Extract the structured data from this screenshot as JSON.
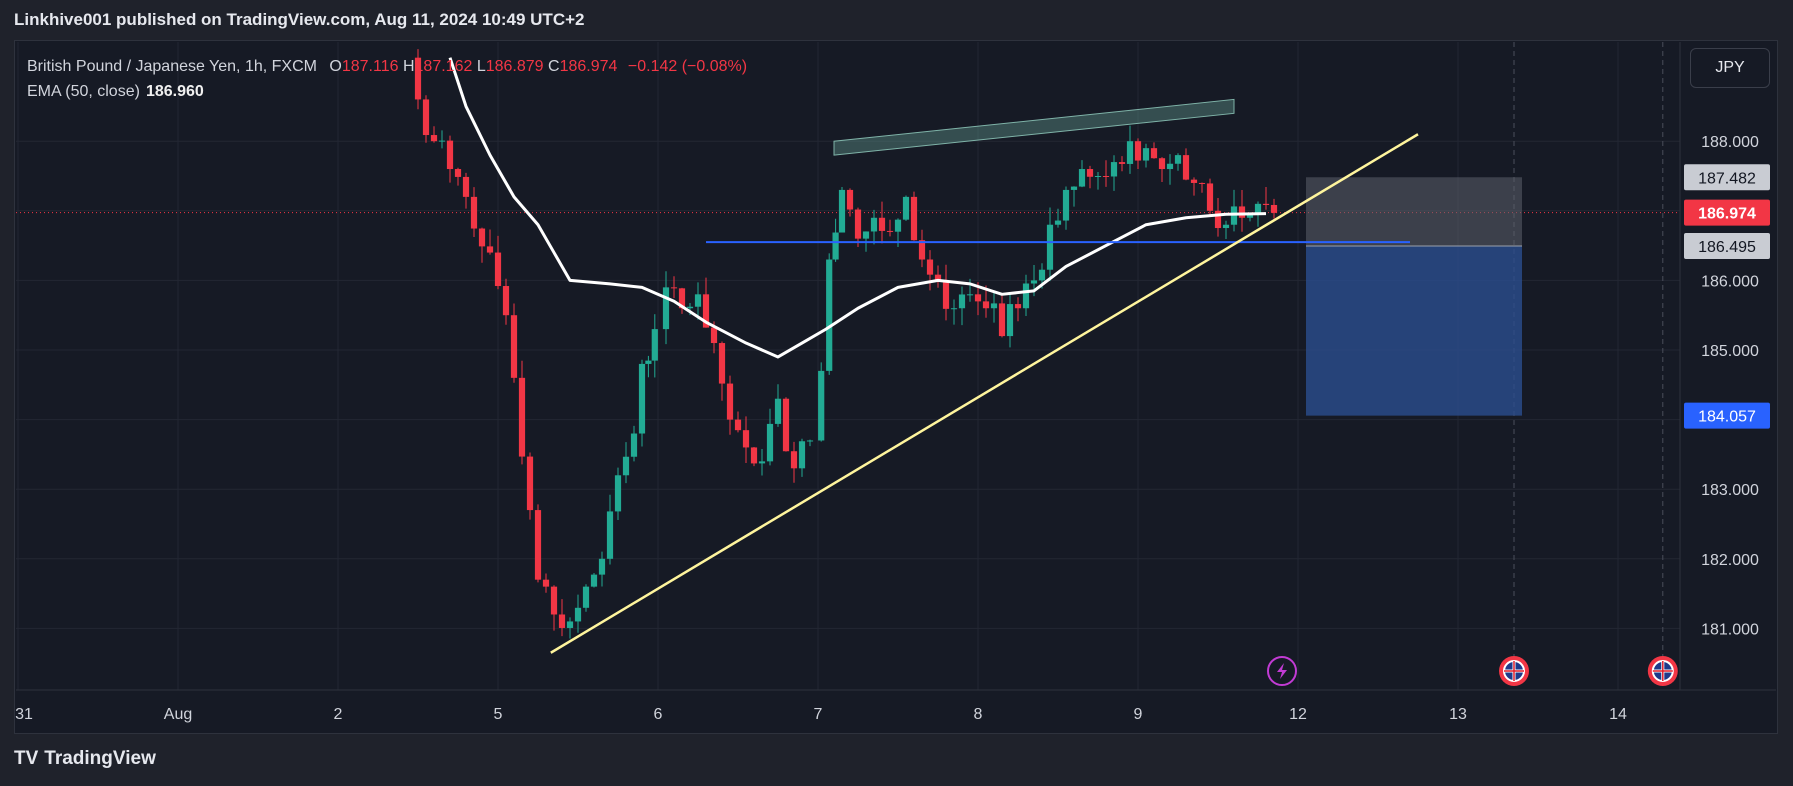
{
  "header": {
    "publisher_line": "Linkhive001 published on TradingView.com, Aug 11, 2024 10:49 UTC+2"
  },
  "legend": {
    "symbol": "British Pound / Japanese Yen, 1h, FXCM",
    "o_label": "O",
    "open": "187.116",
    "h_label": "H",
    "high": "187.162",
    "l_label": "L",
    "low": "186.879",
    "c_label": "C",
    "close": "186.974",
    "change": "−0.142 (−0.08%)",
    "ema_label": "EMA (50, close)",
    "ema_value": "186.960"
  },
  "currency_button": "JPY",
  "footer": {
    "logo_text": "TV",
    "brand": "TradingView"
  },
  "colors": {
    "up": "#22ab94",
    "down": "#f23645",
    "ema": "#ffffff",
    "trendline": "#fff59d",
    "hline": "#2962ff",
    "channel": "#5b8f85",
    "stop_zone": "#5d606b",
    "target_zone": "#2a4d8f",
    "last_price": "#f23645",
    "target_label": "#2962ff"
  },
  "chart_data": {
    "type": "candlestick",
    "symbol": "British Pound / Japanese Yen",
    "interval": "1h",
    "y_ticks": [
      181.0,
      182.0,
      183.0,
      184.0,
      185.0,
      186.0,
      187.0,
      188.0
    ],
    "y_tick_labels": [
      "181.000",
      "182.000",
      "183.000",
      "",
      "185.000",
      "186.000",
      "",
      "188.000"
    ],
    "ylim": [
      180.1,
      189.3
    ],
    "x_ticks": [
      {
        "t": 30.9,
        "label": "31"
      },
      {
        "t": 31.9,
        "label": "Aug"
      },
      {
        "t": 32.9,
        "label": "2"
      },
      {
        "t": 33.9,
        "label": "5"
      },
      {
        "t": 34.9,
        "label": "6"
      },
      {
        "t": 35.9,
        "label": "7"
      },
      {
        "t": 36.9,
        "label": "8"
      },
      {
        "t": 37.9,
        "label": "9"
      },
      {
        "t": 38.9,
        "label": "12"
      },
      {
        "t": 39.9,
        "label": "13"
      },
      {
        "t": 40.9,
        "label": "14"
      }
    ],
    "xlim": [
      30.9,
      41.2
    ],
    "close_path": [
      [
        33.35,
        189.2
      ],
      [
        33.4,
        188.6
      ],
      [
        33.5,
        188.0
      ],
      [
        33.6,
        187.6
      ],
      [
        33.7,
        187.2
      ],
      [
        33.85,
        186.4
      ],
      [
        33.95,
        185.5
      ],
      [
        34.0,
        184.6
      ],
      [
        34.1,
        182.7
      ],
      [
        34.15,
        181.7
      ],
      [
        34.25,
        181.2
      ],
      [
        34.35,
        181.1
      ],
      [
        34.45,
        181.6
      ],
      [
        34.55,
        182.0
      ],
      [
        34.65,
        183.2
      ],
      [
        34.75,
        183.8
      ],
      [
        34.8,
        184.8
      ],
      [
        34.88,
        185.3
      ],
      [
        34.95,
        185.9
      ],
      [
        35.05,
        185.6
      ],
      [
        35.15,
        185.8
      ],
      [
        35.25,
        185.1
      ],
      [
        35.35,
        184.0
      ],
      [
        35.45,
        183.6
      ],
      [
        35.55,
        183.4
      ],
      [
        35.65,
        184.3
      ],
      [
        35.75,
        183.3
      ],
      [
        35.85,
        183.7
      ],
      [
        35.92,
        184.7
      ],
      [
        35.97,
        186.3
      ],
      [
        36.05,
        187.3
      ],
      [
        36.15,
        186.6
      ],
      [
        36.25,
        186.9
      ],
      [
        36.35,
        186.7
      ],
      [
        36.45,
        187.2
      ],
      [
        36.55,
        186.3
      ],
      [
        36.65,
        186.0
      ],
      [
        36.75,
        185.6
      ],
      [
        36.85,
        185.8
      ],
      [
        36.95,
        185.6
      ],
      [
        37.05,
        185.2
      ],
      [
        37.15,
        185.6
      ],
      [
        37.25,
        186.0
      ],
      [
        37.35,
        186.8
      ],
      [
        37.45,
        187.3
      ],
      [
        37.55,
        187.6
      ],
      [
        37.65,
        187.5
      ],
      [
        37.75,
        187.7
      ],
      [
        37.85,
        188.0
      ],
      [
        37.95,
        187.9
      ],
      [
        38.05,
        187.6
      ],
      [
        38.15,
        187.8
      ],
      [
        38.25,
        187.4
      ],
      [
        38.35,
        187.0
      ],
      [
        38.45,
        186.8
      ],
      [
        38.55,
        186.9
      ],
      [
        38.65,
        187.1
      ],
      [
        38.75,
        186.97
      ]
    ],
    "ema_50": [
      [
        33.6,
        189.2
      ],
      [
        33.7,
        188.5
      ],
      [
        33.85,
        187.8
      ],
      [
        34.0,
        187.2
      ],
      [
        34.15,
        186.8
      ],
      [
        34.25,
        186.4
      ],
      [
        34.35,
        186.0
      ],
      [
        34.6,
        185.95
      ],
      [
        34.8,
        185.9
      ],
      [
        35.0,
        185.7
      ],
      [
        35.2,
        185.4
      ],
      [
        35.45,
        185.1
      ],
      [
        35.65,
        184.9
      ],
      [
        35.8,
        185.1
      ],
      [
        35.95,
        185.3
      ],
      [
        36.15,
        185.6
      ],
      [
        36.4,
        185.9
      ],
      [
        36.65,
        186.0
      ],
      [
        36.85,
        185.95
      ],
      [
        37.05,
        185.8
      ],
      [
        37.25,
        185.85
      ],
      [
        37.45,
        186.2
      ],
      [
        37.7,
        186.5
      ],
      [
        37.95,
        186.8
      ],
      [
        38.2,
        186.9
      ],
      [
        38.45,
        186.95
      ],
      [
        38.7,
        186.96
      ]
    ],
    "trendline": [
      [
        34.23,
        180.65
      ],
      [
        39.65,
        188.1
      ]
    ],
    "horizontal_line": {
      "price": 186.55,
      "t_start": 35.2,
      "t_end": 39.6
    },
    "channel": [
      [
        36.0,
        187.8
      ],
      [
        38.5,
        188.4
      ],
      [
        38.5,
        188.6
      ],
      [
        36.0,
        188.0
      ]
    ],
    "position": {
      "entry": 186.495,
      "stop": 187.482,
      "target": 184.057,
      "t_start": 38.95,
      "t_end": 40.3
    },
    "price_labels": [
      {
        "price": 187.482,
        "text": "187.482",
        "kind": "stop"
      },
      {
        "price": 186.974,
        "text": "186.974",
        "kind": "last"
      },
      {
        "price": 186.495,
        "text": "186.495",
        "kind": "entry"
      },
      {
        "price": 184.057,
        "text": "184.057",
        "kind": "target"
      }
    ],
    "last_price": 186.974,
    "event_markers": [
      {
        "t": 38.8,
        "kind": "lightning-icon"
      },
      {
        "t": 40.25,
        "kind": "uk-flag-icon"
      },
      {
        "t": 41.18,
        "kind": "uk-flag-icon"
      }
    ],
    "session_lines": [
      40.25,
      41.18
    ]
  }
}
